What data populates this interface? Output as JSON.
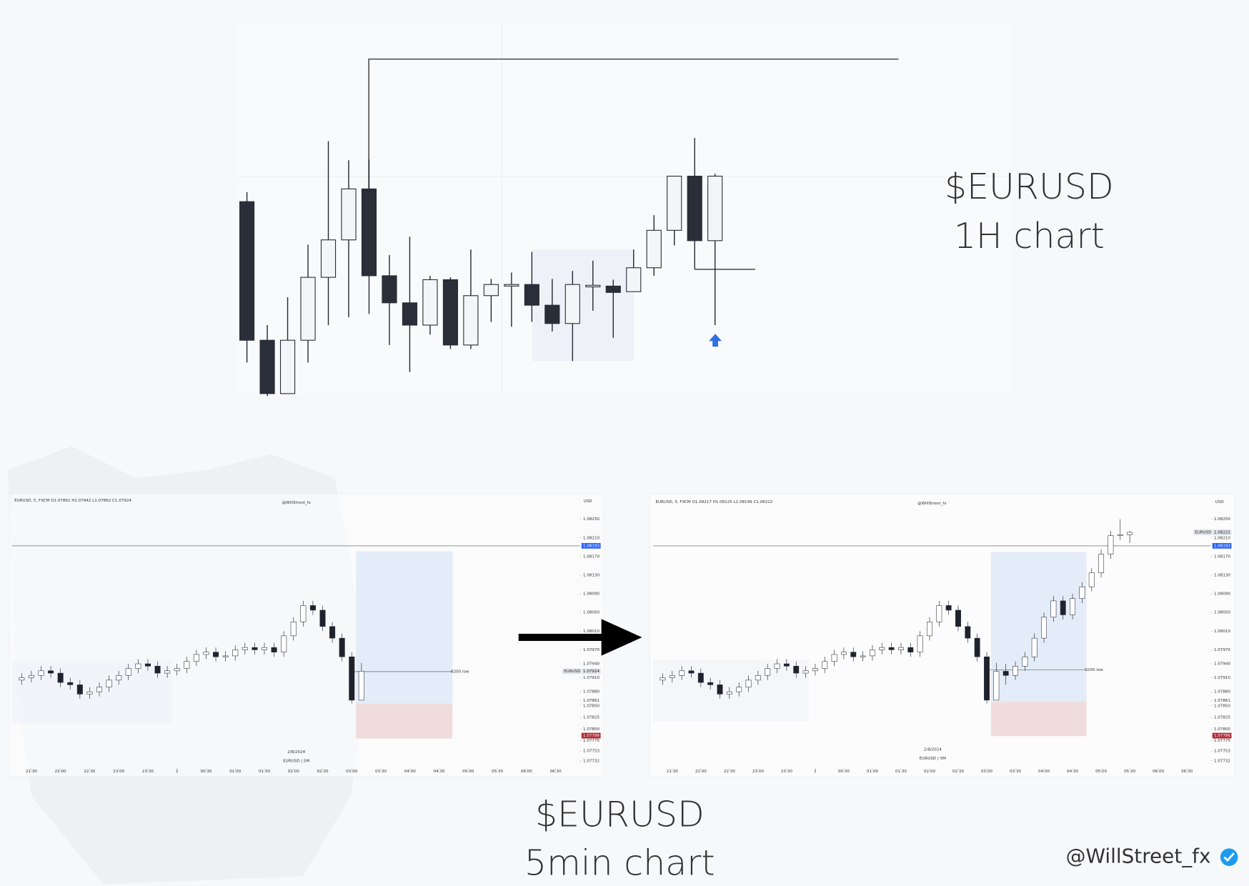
{
  "chart_data": [
    {
      "type": "candlestick",
      "title": "$EURUSD",
      "subtitle": "1H chart",
      "ylim": [
        0,
        470
      ],
      "up_color": "#f4f5f7",
      "down_color": "#2a2e39",
      "candles": [
        [
          247,
          259,
          45,
          73
        ],
        [
          73,
          92,
          3,
          6
        ],
        [
          6,
          127,
          6,
          73
        ],
        [
          73,
          193,
          45,
          152
        ],
        [
          152,
          323,
          92,
          199
        ],
        [
          199,
          299,
          102,
          263
        ],
        [
          263,
          300,
          106,
          154
        ],
        [
          154,
          180,
          67,
          120
        ],
        [
          120,
          203,
          33,
          92
        ],
        [
          92,
          154,
          80,
          149
        ],
        [
          149,
          152,
          62,
          67
        ],
        [
          67,
          187,
          62,
          129
        ],
        [
          129,
          150,
          96,
          143
        ],
        [
          143,
          158,
          90,
          143
        ],
        [
          143,
          184,
          96,
          117
        ],
        [
          117,
          150,
          84,
          94
        ],
        [
          94,
          160,
          47,
          143
        ],
        [
          142,
          173,
          110,
          142
        ],
        [
          141,
          149,
          76,
          133
        ],
        [
          134,
          187,
          134,
          164
        ],
        [
          164,
          230,
          154,
          211
        ],
        [
          211,
          279,
          192,
          279
        ],
        [
          279,
          327,
          162,
          198
        ],
        [
          198,
          282,
          92,
          279
        ]
      ]
    },
    {
      "type": "candlestick",
      "header": "EURUSD, 5, FXCM  O1.07862  H1.07942  L1.07862  C1.07924",
      "watermark": "@WillStreet_fx",
      "currency": "USD",
      "date": "2/8/2024",
      "caption": "EURUSD | 5M",
      "annotation": "0200 low",
      "up_color": "#ffffff",
      "down_color": "#1e222d",
      "xlim": [
        -1,
        57.5
      ],
      "ylim": [
        1.0772,
        1.0827
      ],
      "yticks": [
        {
          "value": 1.0825,
          "label": "1.08250"
        },
        {
          "value": 1.0821,
          "label": "1.08210"
        },
        {
          "value": 1.0817,
          "label": "1.08170"
        },
        {
          "value": 1.0813,
          "label": "1.08130"
        },
        {
          "value": 1.0809,
          "label": "1.08090"
        },
        {
          "value": 1.0805,
          "label": "1.08050"
        },
        {
          "value": 1.0801,
          "label": "1.08010"
        },
        {
          "value": 1.0797,
          "label": "1.07970"
        },
        {
          "value": 1.0794,
          "label": "1.07940"
        },
        {
          "value": 1.0791,
          "label": "1.07910"
        },
        {
          "value": 1.0788,
          "label": "1.07880"
        },
        1.07861,
        {
          "value": 1.0785,
          "label": "1.07850"
        },
        1.07825,
        {
          "value": 1.078,
          "label": "1.07800"
        },
        1.07775,
        1.07753,
        1.07732
      ],
      "xticks": [
        {
          "value": 1,
          "label": "21:30"
        },
        {
          "value": 4,
          "label": "22:00"
        },
        {
          "value": 7,
          "label": "22:30"
        },
        {
          "value": 10,
          "label": "23:00"
        },
        {
          "value": 13,
          "label": "23:30"
        },
        {
          "value": 16,
          "label": "2"
        },
        {
          "value": 19,
          "label": "00:30"
        },
        {
          "value": 22,
          "label": "01:00"
        },
        {
          "value": 25,
          "label": "01:30"
        },
        {
          "value": 28,
          "label": "02:00"
        },
        {
          "value": 31,
          "label": "02:30"
        },
        {
          "value": 34,
          "label": "03:00"
        },
        {
          "value": 37,
          "label": "03:30"
        },
        {
          "value": 40,
          "label": "04:00"
        },
        {
          "value": 43,
          "label": "04:30"
        },
        {
          "value": 46,
          "label": "05:00"
        },
        {
          "value": 49,
          "label": "05:30"
        },
        {
          "value": 52,
          "label": "06:00"
        },
        {
          "value": 55,
          "label": "06:30"
        }
      ],
      "price_tags": [
        {
          "value": 1.08193,
          "color": "#2962ff",
          "line": true
        },
        {
          "value": 1.07924,
          "name": "EURUSD",
          "color": "#dfe2e8"
        },
        {
          "value": 1.07786,
          "color": "#b22833"
        }
      ],
      "candles": [
        [
          1.07905,
          1.0792,
          1.07895,
          1.0791
        ],
        [
          1.0791,
          1.07925,
          1.079,
          1.07915
        ],
        [
          1.07915,
          1.07935,
          1.07905,
          1.07925
        ],
        [
          1.07925,
          1.07935,
          1.0791,
          1.0792
        ],
        [
          1.0792,
          1.0793,
          1.0789,
          1.079
        ],
        [
          1.079,
          1.0791,
          1.07885,
          1.07895
        ],
        [
          1.07895,
          1.07905,
          1.07865,
          1.07875
        ],
        [
          1.07875,
          1.0789,
          1.07865,
          1.0788
        ],
        [
          1.0788,
          1.079,
          1.0787,
          1.0789
        ],
        [
          1.0789,
          1.07915,
          1.0788,
          1.07905
        ],
        [
          1.07905,
          1.07925,
          1.07895,
          1.07915
        ],
        [
          1.07915,
          1.0794,
          1.07905,
          1.0793
        ],
        [
          1.0793,
          1.0795,
          1.0792,
          1.0794
        ],
        [
          1.0794,
          1.0795,
          1.07925,
          1.07935
        ],
        [
          1.07935,
          1.07945,
          1.0791,
          1.0792
        ],
        [
          1.0792,
          1.07935,
          1.0791,
          1.07925
        ],
        [
          1.07925,
          1.0794,
          1.07915,
          1.0793
        ],
        [
          1.0793,
          1.07955,
          1.0792,
          1.07945
        ],
        [
          1.07945,
          1.0797,
          1.07935,
          1.0796
        ],
        [
          1.0796,
          1.07975,
          1.0795,
          1.07965
        ],
        [
          1.07965,
          1.07975,
          1.07945,
          1.07955
        ],
        [
          1.07955,
          1.07967,
          1.07945,
          1.07957
        ],
        [
          1.07957,
          1.0798,
          1.07947,
          1.0797
        ],
        [
          1.0797,
          1.07985,
          1.0796,
          1.07975
        ],
        [
          1.07975,
          1.07985,
          1.0796,
          1.0797
        ],
        [
          1.0797,
          1.07985,
          1.0796,
          1.07975
        ],
        [
          1.07975,
          1.07985,
          1.07955,
          1.07965
        ],
        [
          1.07965,
          1.0801,
          1.07955,
          1.08
        ],
        [
          1.08,
          1.0804,
          1.0799,
          1.0803
        ],
        [
          1.0803,
          1.08075,
          1.0802,
          1.08065
        ],
        [
          1.08065,
          1.08075,
          1.08045,
          1.08055
        ],
        [
          1.08055,
          1.08065,
          1.0801,
          1.0802
        ],
        [
          1.0802,
          1.0803,
          1.07985,
          1.07995
        ],
        [
          1.07995,
          1.08005,
          1.07945,
          1.07955
        ],
        [
          1.07955,
          1.07965,
          1.07855,
          1.07862
        ],
        [
          1.07862,
          1.07942,
          1.07862,
          1.07924
        ]
      ]
    },
    {
      "type": "candlestick",
      "header": "EURUSD, 5, FXCM  O1.08217  H1.08225  L1.08199  C1.08222",
      "watermark": "@WillStreet_fx",
      "currency": "USD",
      "date": "2/8/2024",
      "caption": "EURUSD | 5M",
      "annotation": "0200 low",
      "up_color": "#ffffff",
      "down_color": "#1e222d",
      "xlim": [
        -1,
        57.5
      ],
      "ylim": [
        1.0772,
        1.0827
      ],
      "yticks": [
        {
          "value": 1.0825,
          "label": "1.08250"
        },
        {
          "value": 1.0821,
          "label": "1.08210"
        },
        {
          "value": 1.0817,
          "label": "1.08170"
        },
        {
          "value": 1.0813,
          "label": "1.08130"
        },
        {
          "value": 1.0809,
          "label": "1.08090"
        },
        {
          "value": 1.0805,
          "label": "1.08050"
        },
        {
          "value": 1.0801,
          "label": "1.08010"
        },
        {
          "value": 1.0797,
          "label": "1.07970"
        },
        {
          "value": 1.0794,
          "label": "1.07940"
        },
        {
          "value": 1.0791,
          "label": "1.07910"
        },
        {
          "value": 1.0788,
          "label": "1.07880"
        },
        1.07861,
        {
          "value": 1.0785,
          "label": "1.07850"
        },
        1.07825,
        {
          "value": 1.078,
          "label": "1.07800"
        },
        1.07775,
        1.07753,
        1.07732
      ],
      "xticks": [
        {
          "value": 1,
          "label": "21:30"
        },
        {
          "value": 4,
          "label": "22:00"
        },
        {
          "value": 7,
          "label": "22:30"
        },
        {
          "value": 10,
          "label": "23:00"
        },
        {
          "value": 13,
          "label": "23:30"
        },
        {
          "value": 16,
          "label": "2"
        },
        {
          "value": 19,
          "label": "00:30"
        },
        {
          "value": 22,
          "label": "01:00"
        },
        {
          "value": 25,
          "label": "01:30"
        },
        {
          "value": 28,
          "label": "02:00"
        },
        {
          "value": 31,
          "label": "02:30"
        },
        {
          "value": 34,
          "label": "03:00"
        },
        {
          "value": 37,
          "label": "03:30"
        },
        {
          "value": 40,
          "label": "04:00"
        },
        {
          "value": 43,
          "label": "04:30"
        },
        {
          "value": 46,
          "label": "05:00"
        },
        {
          "value": 49,
          "label": "05:30"
        },
        {
          "value": 52,
          "label": "06:00"
        },
        {
          "value": 55,
          "label": "06:30"
        }
      ],
      "price_tags": [
        {
          "value": 1.08222,
          "name": "EURUSD",
          "color": "#dfe2e8"
        },
        {
          "value": 1.08193,
          "color": "#2962ff",
          "line": true
        },
        {
          "value": 1.07786,
          "color": "#b22833"
        }
      ],
      "candles": [
        [
          1.07905,
          1.0792,
          1.07895,
          1.0791
        ],
        [
          1.0791,
          1.07925,
          1.079,
          1.07915
        ],
        [
          1.07915,
          1.07935,
          1.07905,
          1.07925
        ],
        [
          1.07925,
          1.07935,
          1.0791,
          1.0792
        ],
        [
          1.0792,
          1.0793,
          1.0789,
          1.079
        ],
        [
          1.079,
          1.0791,
          1.07885,
          1.07895
        ],
        [
          1.07895,
          1.07905,
          1.07865,
          1.07875
        ],
        [
          1.07875,
          1.0789,
          1.07865,
          1.0788
        ],
        [
          1.0788,
          1.079,
          1.0787,
          1.0789
        ],
        [
          1.0789,
          1.07915,
          1.0788,
          1.07905
        ],
        [
          1.07905,
          1.07925,
          1.07895,
          1.07915
        ],
        [
          1.07915,
          1.0794,
          1.07905,
          1.0793
        ],
        [
          1.0793,
          1.0795,
          1.0792,
          1.0794
        ],
        [
          1.0794,
          1.0795,
          1.07925,
          1.07935
        ],
        [
          1.07935,
          1.07945,
          1.0791,
          1.0792
        ],
        [
          1.0792,
          1.07935,
          1.0791,
          1.07925
        ],
        [
          1.07925,
          1.0794,
          1.07915,
          1.0793
        ],
        [
          1.0793,
          1.07955,
          1.0792,
          1.07945
        ],
        [
          1.07945,
          1.0797,
          1.07935,
          1.0796
        ],
        [
          1.0796,
          1.07975,
          1.0795,
          1.07965
        ],
        [
          1.07965,
          1.07975,
          1.07945,
          1.07955
        ],
        [
          1.07955,
          1.07967,
          1.07945,
          1.07957
        ],
        [
          1.07957,
          1.0798,
          1.07947,
          1.0797
        ],
        [
          1.0797,
          1.07985,
          1.0796,
          1.07975
        ],
        [
          1.07975,
          1.07985,
          1.0796,
          1.0797
        ],
        [
          1.0797,
          1.07985,
          1.0796,
          1.07975
        ],
        [
          1.07975,
          1.07985,
          1.07955,
          1.07965
        ],
        [
          1.07965,
          1.0801,
          1.07955,
          1.08
        ],
        [
          1.08,
          1.0804,
          1.0799,
          1.0803
        ],
        [
          1.0803,
          1.08075,
          1.0802,
          1.08065
        ],
        [
          1.08065,
          1.08075,
          1.08045,
          1.08055
        ],
        [
          1.08055,
          1.08065,
          1.0801,
          1.0802
        ],
        [
          1.0802,
          1.0803,
          1.07985,
          1.07995
        ],
        [
          1.07995,
          1.08005,
          1.07945,
          1.07955
        ],
        [
          1.07955,
          1.07965,
          1.07855,
          1.07862
        ],
        [
          1.07862,
          1.07942,
          1.07862,
          1.07924
        ],
        [
          1.07924,
          1.0794,
          1.07895,
          1.07915
        ],
        [
          1.07915,
          1.07945,
          1.07905,
          1.07935
        ],
        [
          1.07935,
          1.07965,
          1.07925,
          1.07955
        ],
        [
          1.07955,
          1.08005,
          1.07945,
          1.07995
        ],
        [
          1.07995,
          1.0805,
          1.07985,
          1.0804
        ],
        [
          1.0804,
          1.08085,
          1.0803,
          1.08075
        ],
        [
          1.08075,
          1.08085,
          1.08035,
          1.08045
        ],
        [
          1.08045,
          1.0809,
          1.08035,
          1.0808
        ],
        [
          1.0808,
          1.08115,
          1.0807,
          1.08105
        ],
        [
          1.08105,
          1.08145,
          1.08095,
          1.08135
        ],
        [
          1.08135,
          1.08185,
          1.08125,
          1.08175
        ],
        [
          1.08175,
          1.08225,
          1.08165,
          1.08215
        ],
        [
          1.08215,
          1.0825,
          1.08205,
          1.08217
        ],
        [
          1.08217,
          1.08225,
          1.08199,
          1.08222
        ]
      ]
    }
  ],
  "footer": {
    "title": "$EURUSD",
    "subtitle": "5min chart",
    "handle": "@WillStreet_fx"
  }
}
